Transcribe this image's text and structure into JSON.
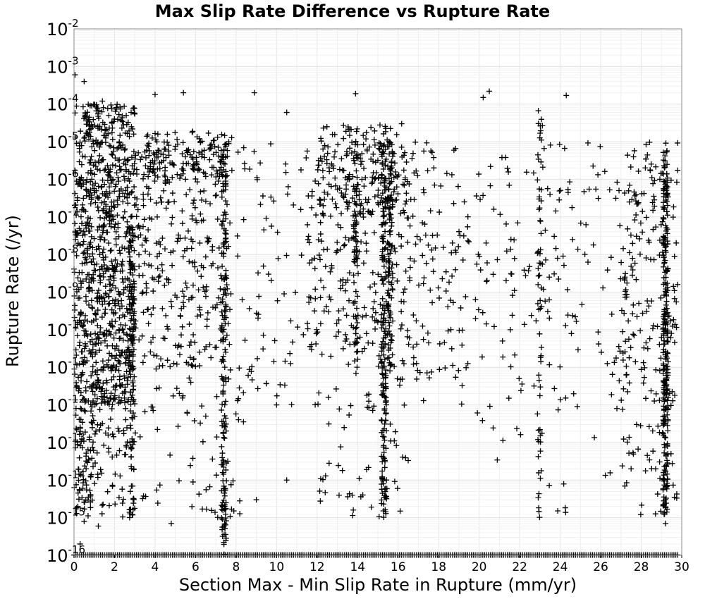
{
  "chart_data": {
    "type": "scatter",
    "title": "Max Slip Rate Difference vs Rupture Rate",
    "xlabel": "Section Max - Min Slip Rate in Rupture (mm/yr)",
    "ylabel": "Rupture Rate (/yr)",
    "xlim": [
      0,
      30
    ],
    "ylim": [
      1e-16,
      0.01
    ],
    "yscale": "log",
    "grid": true,
    "legend": "none",
    "marker": "+",
    "color": "#000000",
    "x_ticks": [
      0,
      2,
      4,
      6,
      8,
      10,
      12,
      14,
      16,
      18,
      20,
      22,
      24,
      26,
      28,
      30
    ],
    "x_tick_labels": [
      "0",
      "2",
      "4",
      "6",
      "8",
      "10",
      "12",
      "14",
      "16",
      "18",
      "20",
      "22",
      "24",
      "26",
      "28",
      "30"
    ],
    "y_ticks": [
      {
        "base": "10",
        "exp": "-16"
      },
      {
        "base": "10",
        "exp": "-15"
      },
      {
        "base": "10",
        "exp": "-14"
      },
      {
        "base": "10",
        "exp": "-13"
      },
      {
        "base": "10",
        "exp": "-12"
      },
      {
        "base": "10",
        "exp": "-11"
      },
      {
        "base": "10",
        "exp": "-10"
      },
      {
        "base": "10",
        "exp": "-9"
      },
      {
        "base": "10",
        "exp": "-8"
      },
      {
        "base": "10",
        "exp": "-7"
      },
      {
        "base": "10",
        "exp": "-6"
      },
      {
        "base": "10",
        "exp": "-5"
      },
      {
        "base": "10",
        "exp": "-4"
      },
      {
        "base": "10",
        "exp": "-3"
      },
      {
        "base": "10",
        "exp": "-2"
      }
    ],
    "density_bands": [
      {
        "x_range": [
          0,
          3.0
        ],
        "y_range": [
          1e-12,
          0.0001
        ],
        "weight": 900
      },
      {
        "x_range": [
          0,
          1.0
        ],
        "y_range": [
          1e-15,
          1e-12
        ],
        "weight": 90
      },
      {
        "x_range": [
          1.0,
          3.0
        ],
        "y_range": [
          1e-15,
          1e-12
        ],
        "weight": 60
      },
      {
        "x_range": [
          3.0,
          7.8
        ],
        "y_range": [
          1e-11,
          1e-05
        ],
        "weight": 320
      },
      {
        "x_range": [
          3.0,
          8.5
        ],
        "y_range": [
          1e-15,
          1e-11
        ],
        "weight": 70
      },
      {
        "x_range": [
          3.5,
          7.8
        ],
        "y_range": [
          1e-06,
          2e-05
        ],
        "weight": 120
      },
      {
        "x_range": [
          8.0,
          9.5
        ],
        "y_range": [
          1e-12,
          1e-05
        ],
        "weight": 40
      },
      {
        "x_range": [
          9.5,
          12.0
        ],
        "y_range": [
          1e-12,
          1e-05
        ],
        "weight": 40
      },
      {
        "x_range": [
          11.5,
          16.8
        ],
        "y_range": [
          1e-11,
          1e-05
        ],
        "weight": 260
      },
      {
        "x_range": [
          12.0,
          16.5
        ],
        "y_range": [
          1e-07,
          3e-05
        ],
        "weight": 140
      },
      {
        "x_range": [
          12.0,
          16.5
        ],
        "y_range": [
          1e-15,
          1e-11
        ],
        "weight": 60
      },
      {
        "x_range": [
          16.5,
          19.5
        ],
        "y_range": [
          1e-12,
          1e-05
        ],
        "weight": 110
      },
      {
        "x_range": [
          19.5,
          27.0
        ],
        "y_range": [
          1e-12,
          1e-05
        ],
        "weight": 150
      },
      {
        "x_range": [
          19.5,
          27.0
        ],
        "y_range": [
          1e-15,
          1e-12
        ],
        "weight": 20
      },
      {
        "x_range": [
          27.0,
          29.8
        ],
        "y_range": [
          1e-12,
          1e-05
        ],
        "weight": 180
      },
      {
        "x_range": [
          27.0,
          29.8
        ],
        "y_range": [
          1e-15,
          1e-12
        ],
        "weight": 40
      }
    ],
    "vertical_clusters": [
      {
        "x": 2.85,
        "y_range": [
          1e-15,
          1e-07
        ],
        "weight": 110
      },
      {
        "x": 7.4,
        "y_range": [
          1e-16,
          1e-05
        ],
        "weight": 150
      },
      {
        "x": 13.9,
        "y_range": [
          1e-11,
          1e-05
        ],
        "weight": 70
      },
      {
        "x": 15.3,
        "y_range": [
          1e-15,
          1e-05
        ],
        "weight": 170
      },
      {
        "x": 15.6,
        "y_range": [
          1e-11,
          1e-05
        ],
        "weight": 100
      },
      {
        "x": 23.0,
        "y_range": [
          1e-15,
          0.0001
        ],
        "weight": 60
      },
      {
        "x": 29.2,
        "y_range": [
          1e-15,
          1e-05
        ],
        "weight": 260
      }
    ],
    "floor_row": {
      "y": 1e-16,
      "x_range": [
        0,
        29.8
      ],
      "count": 320
    },
    "sparse_points": [
      {
        "x": 0.05,
        "y": 0.0006
      },
      {
        "x": 0.5,
        "y": 0.0004
      },
      {
        "x": 1.4,
        "y": 0.00012
      },
      {
        "x": 4.0,
        "y": 0.00018
      },
      {
        "x": 5.4,
        "y": 0.0002
      },
      {
        "x": 8.9,
        "y": 0.0002
      },
      {
        "x": 13.9,
        "y": 0.00019
      },
      {
        "x": 20.2,
        "y": 0.00015
      },
      {
        "x": 20.5,
        "y": 0.00022
      },
      {
        "x": 24.3,
        "y": 0.00017
      },
      {
        "x": 10.5,
        "y": 6e-05
      },
      {
        "x": 9.6,
        "y": 3e-09
      },
      {
        "x": 10.0,
        "y": 1e-12
      },
      {
        "x": 10.5,
        "y": 1e-14
      },
      {
        "x": 9.0,
        "y": 3e-15
      },
      {
        "x": 16.1,
        "y": 1.5e-15
      },
      {
        "x": 27.5,
        "y": 2e-14
      },
      {
        "x": 26.8,
        "y": 8e-13
      },
      {
        "x": 0.5,
        "y": 8e-16
      },
      {
        "x": 1.2,
        "y": 6e-16
      },
      {
        "x": 7.4,
        "y": 6e-16
      },
      {
        "x": 4.8,
        "y": 7e-16
      },
      {
        "x": 29.2,
        "y": 7e-16
      },
      {
        "x": 0.3,
        "y": 2e-16
      }
    ]
  }
}
